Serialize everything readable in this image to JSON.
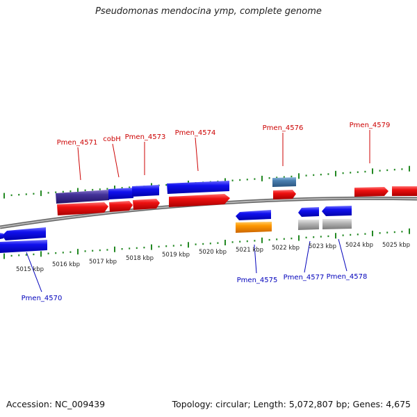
{
  "header": {
    "title": "Pseudomonas mendocina ymp, complete genome"
  },
  "footer": {
    "accession": "Accession: NC_009439",
    "topology": "Topology: circular; Length: 5,072,807 bp; Genes: 4,675"
  },
  "colors": {
    "plus_strand": "#ee1111",
    "minus_strand": "#1111ee",
    "label_plus": "#cc0000",
    "label_minus": "#0000bb",
    "tick": "#228822",
    "backbone": "#8a8a8a",
    "navy_gene": "#443399",
    "steel_gene": "#4a7fb0",
    "orange_gene": "#ff9900",
    "grey_gene": "#aaaaaa"
  },
  "kbp_labels": [
    "5015 kbp",
    "5016 kbp",
    "5017 kbp",
    "5018 kbp",
    "5019 kbp",
    "5020 kbp",
    "5021 kbp",
    "5022 kbp",
    "5023 kbp",
    "5024 kbp",
    "5025 kbp"
  ],
  "gene_labels_top": [
    "Pmen_4571",
    "cobH",
    "Pmen_4573",
    "Pmen_4574",
    "Pmen_4576",
    "Pmen_4579"
  ],
  "gene_labels_bottom": [
    "Pmen_4570",
    "Pmen_4575",
    "Pmen_4577",
    "Pmen_4578"
  ]
}
